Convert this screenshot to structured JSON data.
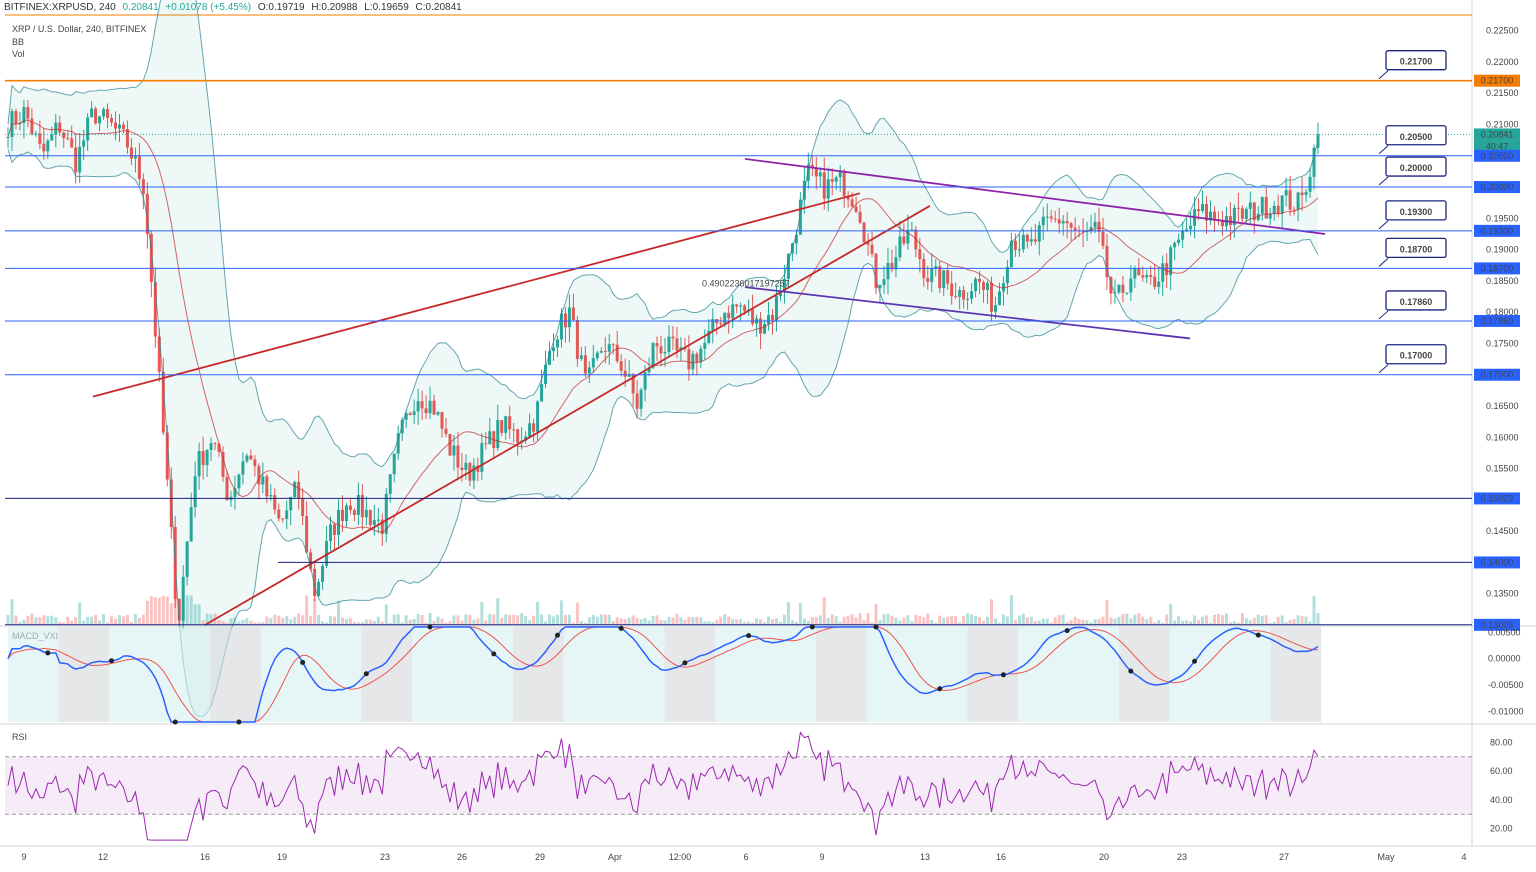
{
  "header": {
    "symbol": "BITFINEX:XRPUSD, 240",
    "last": "0.20841",
    "change": "+0.01078 (+5.45%)",
    "open": "O:0.19719",
    "high": "H:0.20988",
    "low": "L:0.19659",
    "close": "C:0.20841"
  },
  "legend": {
    "title": "XRP / U.S. Dollar, 240, BITFINEX",
    "bb": "BB",
    "vol": "Vol"
  },
  "colors": {
    "up": "#26a69a",
    "down": "#ef5350",
    "accent_orange": "#f57c00",
    "level_blue": "#2962ff",
    "macd_line": "#2962ff",
    "signal_line": "#ef5350",
    "rsi": "#9c27b0"
  },
  "chart_data": {
    "type": "candlestick",
    "price_axis": {
      "min": 0.13,
      "max": 0.2275,
      "ticks": [
        "0.22500",
        "0.22000",
        "0.21500",
        "0.21000",
        "0.20500",
        "0.20000",
        "0.19500",
        "0.19000",
        "0.18500",
        "0.18000",
        "0.17500",
        "0.17000",
        "0.16500",
        "0.16000",
        "0.15500",
        "0.15000",
        "0.14500",
        "0.14000",
        "0.13500"
      ]
    },
    "time_labels": [
      "9",
      "12",
      "16",
      "19",
      "23",
      "26",
      "29",
      "Apr",
      "12:00",
      "6",
      "9",
      "13",
      "16",
      "20",
      "23",
      "27",
      "May",
      "4"
    ],
    "levels": [
      {
        "value": 0.217,
        "label": "0.21700",
        "color": "#f57c00"
      },
      {
        "value": 0.205,
        "label": "0.20500",
        "color": "#2962ff"
      },
      {
        "value": 0.2,
        "label": "0.20000",
        "color": "#2962ff"
      },
      {
        "value": 0.193,
        "label": "0.19300",
        "color": "#2962ff"
      },
      {
        "value": 0.187,
        "label": "0.18700",
        "color": "#2962ff"
      },
      {
        "value": 0.1786,
        "label": "0.17860",
        "color": "#2962ff"
      },
      {
        "value": 0.17,
        "label": "0.17000",
        "color": "#2962ff"
      }
    ],
    "axis_badges": [
      {
        "value": 0.217,
        "label": "0.21700",
        "color": "#f57c00"
      },
      {
        "value": 0.20841,
        "label": "0.20841",
        "color": "#26a69a"
      },
      {
        "value": 0.2065,
        "label": "40:47",
        "color": "#26a69a"
      },
      {
        "value": 0.205,
        "label": "0.20500",
        "color": "#2962ff"
      },
      {
        "value": 0.2,
        "label": "0.20000",
        "color": "#2962ff"
      },
      {
        "value": 0.193,
        "label": "0.19300",
        "color": "#2962ff"
      },
      {
        "value": 0.187,
        "label": "0.18700",
        "color": "#2962ff"
      },
      {
        "value": 0.1786,
        "label": "0.17860",
        "color": "#2962ff"
      },
      {
        "value": 0.17,
        "label": "0.17000",
        "color": "#2962ff"
      },
      {
        "value": 0.15023,
        "label": "0.15023",
        "color": "#2962ff"
      },
      {
        "value": 0.14,
        "label": "0.14000",
        "color": "#2962ff"
      },
      {
        "value": 0.13003,
        "label": "0.13003",
        "color": "#2962ff"
      }
    ],
    "fib_label": "0.4902236017197257",
    "anchors": [
      0.21,
      0.212,
      0.205,
      0.21,
      0.204,
      0.212,
      0.21,
      0.207,
      0.2,
      0.165,
      0.13,
      0.155,
      0.16,
      0.15,
      0.158,
      0.152,
      0.146,
      0.152,
      0.135,
      0.145,
      0.15,
      0.148,
      0.146,
      0.16,
      0.167,
      0.165,
      0.158,
      0.154,
      0.158,
      0.162,
      0.16,
      0.163,
      0.176,
      0.18,
      0.168,
      0.175,
      0.172,
      0.165,
      0.175,
      0.174,
      0.172,
      0.175,
      0.18,
      0.181,
      0.178,
      0.18,
      0.19,
      0.202,
      0.2,
      0.201,
      0.197,
      0.185,
      0.188,
      0.193,
      0.186,
      0.185,
      0.183,
      0.185,
      0.181,
      0.192,
      0.19,
      0.194,
      0.195,
      0.192,
      0.193,
      0.181,
      0.186,
      0.184,
      0.187,
      0.192,
      0.196,
      0.195,
      0.195,
      0.196,
      0.197,
      0.198,
      0.1972,
      0.2084
    ],
    "macd": {
      "ticks": [
        "0.00500",
        "0.00000",
        "-0.00500",
        "-0.01000"
      ],
      "min": -0.012,
      "max": 0.006,
      "title": "MACD_VXI"
    },
    "rsi": {
      "ticks": [
        "80.00",
        "60.00",
        "40.00",
        "20.00"
      ],
      "min": 10,
      "max": 90,
      "upper": 70,
      "lower": 30,
      "title": "RSI"
    }
  }
}
